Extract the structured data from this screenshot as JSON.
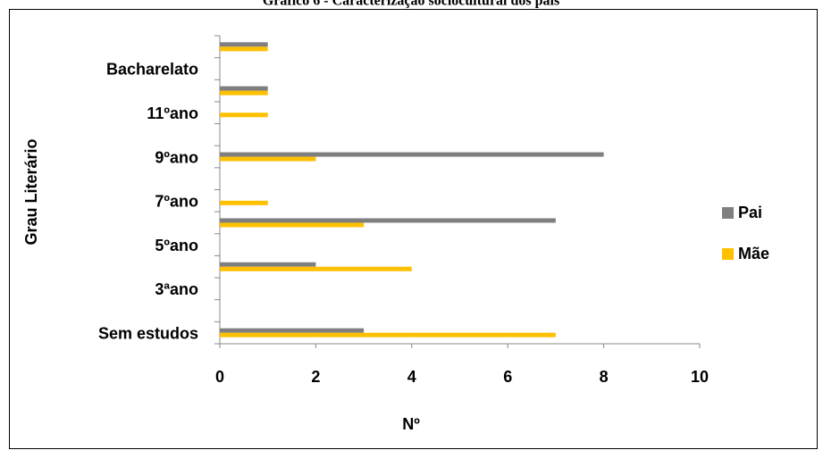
{
  "chart_data": {
    "type": "hbar",
    "title": "Gráfico 6 - Caracterização sociocultural dos pais",
    "x_label": "Nº",
    "y_label": "Grau Literário",
    "categories": [
      "Sem estudos",
      null,
      "3ªano",
      null,
      "5ºano",
      null,
      "7ºano",
      null,
      "9ºano",
      null,
      "11ºano",
      null,
      "Bacharelato",
      null
    ],
    "series": [
      {
        "name": "Pai",
        "color": "#7f7f7f",
        "values": [
          3,
          0,
          0,
          2,
          0,
          7,
          0,
          0,
          8,
          0,
          0,
          1,
          0,
          1
        ]
      },
      {
        "name": "Mãe",
        "color": "#ffc000",
        "values": [
          7,
          0,
          0,
          4,
          0,
          3,
          1,
          0,
          2,
          0,
          1,
          1,
          0,
          1
        ]
      }
    ],
    "xlim": [
      0,
      10
    ],
    "xticks": [
      0,
      2,
      4,
      6,
      8,
      10
    ],
    "legend": "right"
  }
}
